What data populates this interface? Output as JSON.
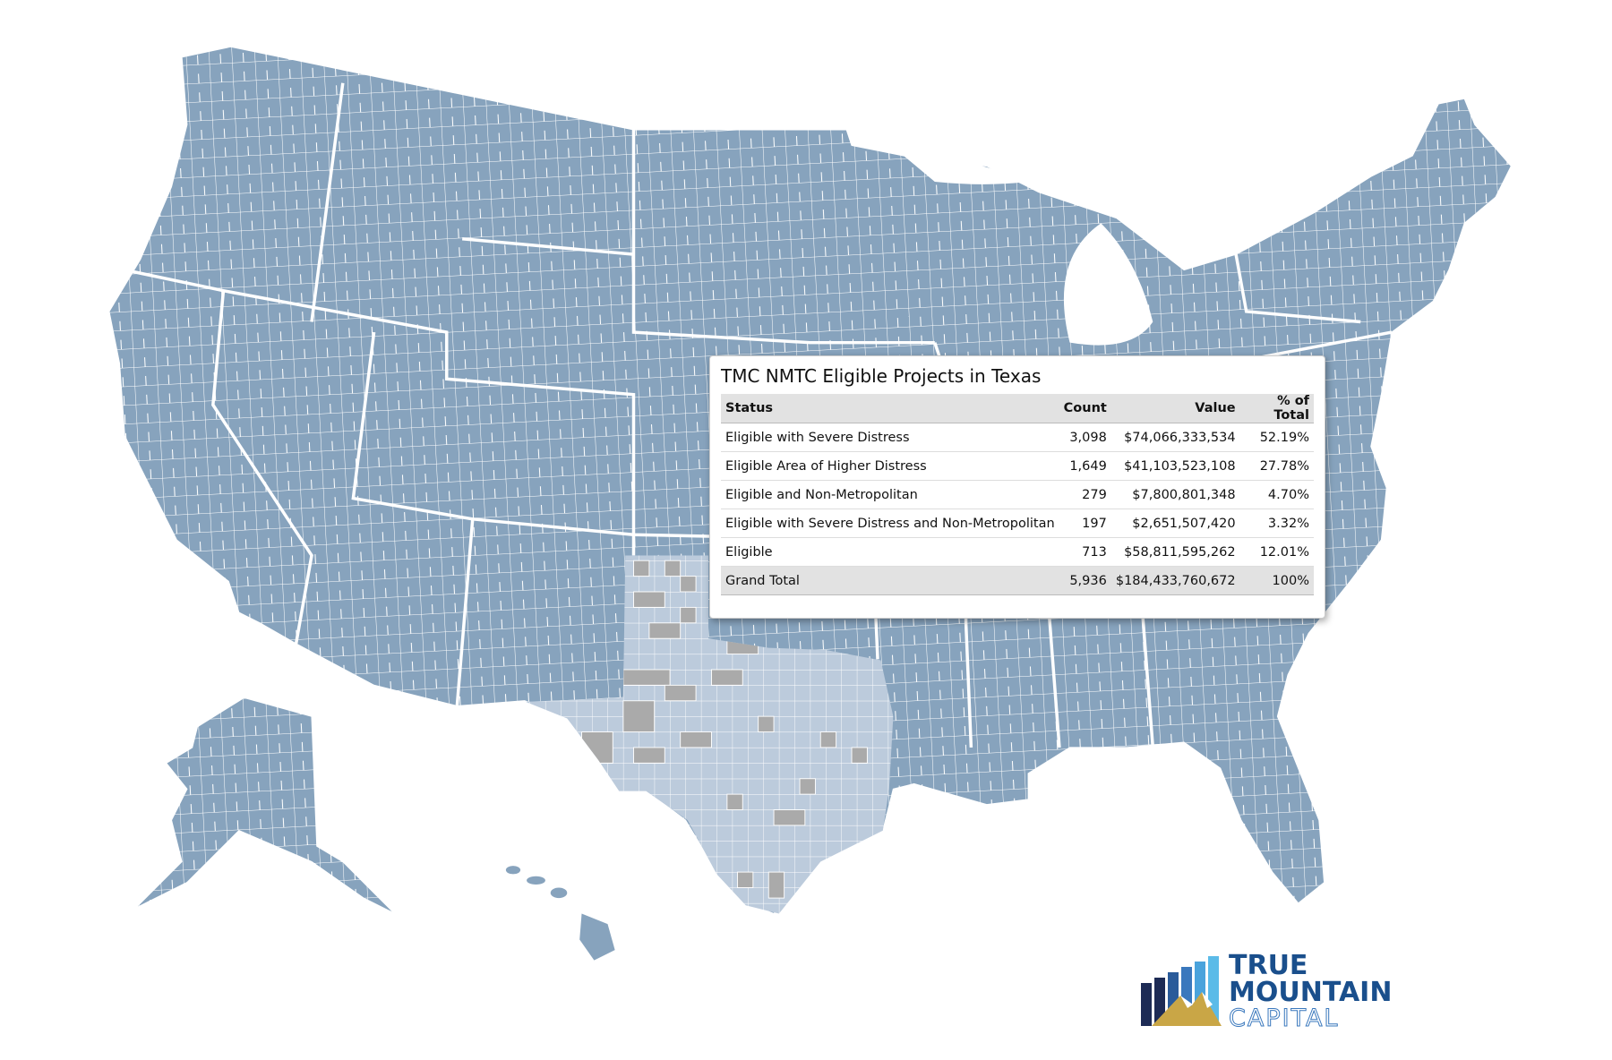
{
  "tooltip": {
    "title": "TMC NMTC Eligible Projects in Texas",
    "columns": [
      "Status",
      "Count",
      "Value",
      "% of Total"
    ],
    "rows": [
      [
        "Eligible with Severe Distress",
        "3,098",
        "$74,066,333,534",
        "52.19%"
      ],
      [
        "Eligible Area of Higher Distress",
        "1,649",
        "$41,103,523,108",
        "27.78%"
      ],
      [
        "Eligible and Non-Metropolitan",
        "279",
        "$7,800,801,348",
        "4.70%"
      ],
      [
        "Eligible with Severe Distress and Non-Metropolitan",
        "197",
        "$2,651,507,420",
        "3.32%"
      ],
      [
        "Eligible",
        "713",
        "$58,811,595,262",
        "12.01%"
      ]
    ],
    "total": [
      "Grand Total",
      "5,936",
      "$184,433,760,672",
      "100%"
    ]
  },
  "logo": {
    "line1": "TRUE",
    "line2": "MOUNTAIN",
    "line3": "CAPITAL"
  }
}
